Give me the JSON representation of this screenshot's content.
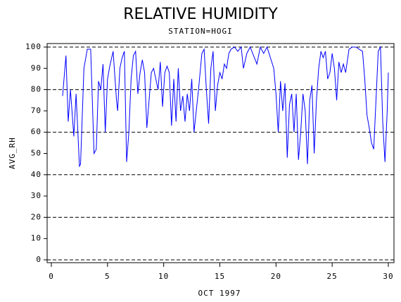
{
  "chart_data": {
    "type": "line",
    "title": "RELATIVE HUMIDITY",
    "subtitle": "STATION=HOGI",
    "x_label": "OCT 1997",
    "y_label": "AVG_RH",
    "xlim": [
      0,
      30
    ],
    "xticks": [
      0,
      5,
      10,
      15,
      20,
      25,
      30
    ],
    "ylim": [
      0,
      100
    ],
    "yticks": [
      0,
      10,
      20,
      30,
      40,
      50,
      60,
      70,
      80,
      90,
      100
    ],
    "ygrid": [
      0,
      20,
      40,
      60,
      80,
      100
    ],
    "series": [
      {
        "color": "#0000ff",
        "x": [
          1,
          1.3,
          1.5,
          1.7,
          2,
          2.2,
          2.5,
          2.6,
          2.9,
          3.2,
          3.5,
          3.8,
          4,
          4.2,
          4.4,
          4.6,
          4.8,
          5,
          5.2,
          5.5,
          5.8,
          5.9,
          6.1,
          6.3,
          6.5,
          6.7,
          6.9,
          7.1,
          7.3,
          7.5,
          7.7,
          7.9,
          8.1,
          8.3,
          8.5,
          8.7,
          8.9,
          9.1,
          9.3,
          9.5,
          9.7,
          9.9,
          10.1,
          10.3,
          10.5,
          10.7,
          10.9,
          11.1,
          11.3,
          11.5,
          11.7,
          11.9,
          12.1,
          12.3,
          12.5,
          12.7,
          12.9,
          13.1,
          13.4,
          13.6,
          13.8,
          14,
          14.2,
          14.4,
          14.6,
          14.8,
          15,
          15.2,
          15.4,
          15.6,
          15.8,
          16,
          16.3,
          16.6,
          16.9,
          17.1,
          17.4,
          17.7,
          18,
          18.3,
          18.6,
          18.9,
          19.2,
          19.5,
          19.8,
          20,
          20.2,
          20.4,
          20.6,
          20.8,
          21,
          21.2,
          21.4,
          21.6,
          21.8,
          22,
          22.2,
          22.4,
          22.6,
          22.8,
          23,
          23.2,
          23.4,
          23.6,
          23.8,
          24,
          24.2,
          24.4,
          24.6,
          24.8,
          25,
          25.2,
          25.4,
          25.6,
          25.8,
          26,
          26.2,
          26.5,
          26.8,
          27.1,
          27.4,
          27.7,
          27.9,
          28.1,
          28.3,
          28.5,
          28.7,
          28.9,
          29.1,
          29.3,
          29.5,
          29.7,
          29.9,
          30
        ],
        "values": [
          77,
          96,
          65,
          80,
          58,
          78,
          44,
          45,
          90,
          99,
          99,
          50,
          52,
          84,
          80,
          92,
          60,
          85,
          91,
          98,
          75,
          70,
          90,
          95,
          98,
          46,
          60,
          85,
          96,
          98,
          78,
          88,
          94,
          88,
          62,
          75,
          88,
          90,
          85,
          80,
          93,
          72,
          88,
          91,
          88,
          63,
          85,
          65,
          90,
          70,
          77,
          65,
          78,
          70,
          85,
          60,
          70,
          80,
          97,
          99,
          80,
          64,
          90,
          98,
          70,
          82,
          88,
          85,
          92,
          90,
          97,
          99,
          100,
          98,
          100,
          90,
          97,
          100,
          96,
          92,
          100,
          97,
          100,
          95,
          90,
          78,
          60,
          84,
          70,
          83,
          48,
          73,
          78,
          60,
          78,
          47,
          60,
          78,
          70,
          45,
          75,
          82,
          50,
          75,
          90,
          98,
          95,
          98,
          85,
          88,
          97,
          90,
          75,
          93,
          88,
          92,
          88,
          99,
          100,
          100,
          99,
          98,
          85,
          68,
          62,
          55,
          52,
          75,
          98,
          100,
          65,
          46,
          70,
          88
        ]
      }
    ]
  }
}
